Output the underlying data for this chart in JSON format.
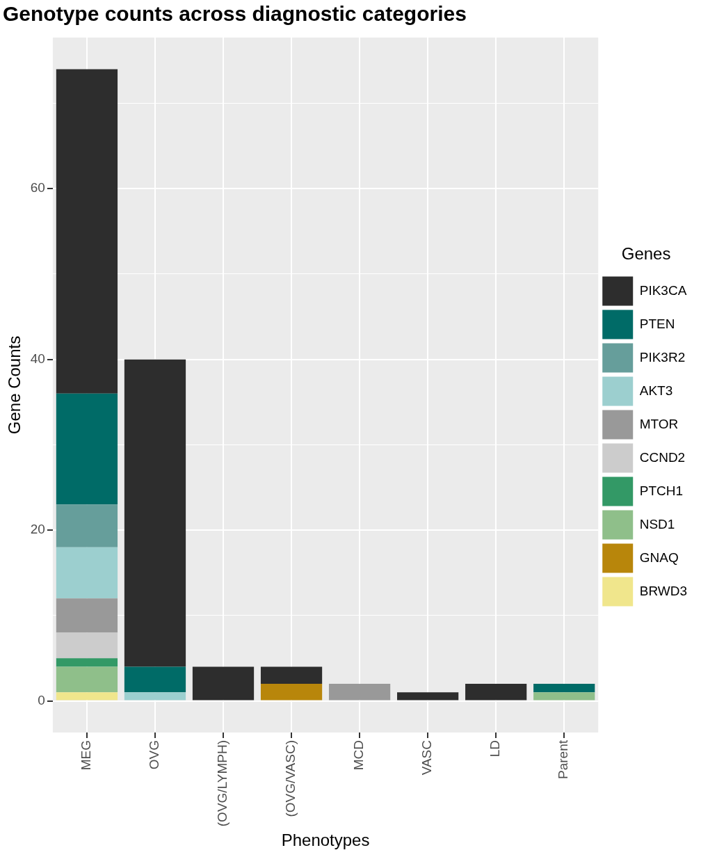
{
  "chart_data": {
    "type": "bar",
    "title": "Genotype counts across diagnostic categories",
    "xlabel": "Phenotypes",
    "ylabel": "Gene Counts",
    "legend_title": "Genes",
    "legend": "right",
    "stacked": true,
    "grid": true,
    "categories": [
      "MEG",
      "OVG",
      "(OVG/LYMPH)",
      "(OVG/VASC)",
      "MCD",
      "VASC",
      "LD",
      "Parent"
    ],
    "ylim": [
      -3.7,
      77.7
    ],
    "yticks": [
      0,
      {
        "value": 10,
        "label": null
      },
      20,
      {
        "value": 30,
        "label": null
      },
      40,
      {
        "value": 50,
        "label": null
      },
      60,
      {
        "value": 70,
        "label": null
      }
    ],
    "series": [
      {
        "name": "BRWD3",
        "color": "#f0e68c",
        "values": [
          1,
          null,
          null,
          null,
          null,
          null,
          null,
          null
        ]
      },
      {
        "name": "GNAQ",
        "color": "#b8860b",
        "values": [
          null,
          null,
          null,
          2,
          null,
          null,
          null,
          null
        ]
      },
      {
        "name": "NSD1",
        "color": "#8fbf8a",
        "values": [
          3,
          null,
          null,
          null,
          null,
          null,
          null,
          1
        ]
      },
      {
        "name": "PTCH1",
        "color": "#339966",
        "values": [
          1,
          null,
          null,
          null,
          null,
          null,
          null,
          null
        ]
      },
      {
        "name": "CCND2",
        "color": "#cccccc",
        "values": [
          3,
          null,
          null,
          null,
          null,
          null,
          null,
          null
        ]
      },
      {
        "name": "MTOR",
        "color": "#999999",
        "values": [
          4,
          null,
          null,
          null,
          2,
          null,
          null,
          null
        ]
      },
      {
        "name": "AKT3",
        "color": "#9ccfcf",
        "values": [
          6,
          1,
          null,
          null,
          null,
          null,
          null,
          null
        ]
      },
      {
        "name": "PIK3R2",
        "color": "#669e9b",
        "values": [
          5,
          null,
          null,
          null,
          null,
          null,
          null,
          null
        ]
      },
      {
        "name": "PTEN",
        "color": "#006b67",
        "values": [
          13,
          3,
          null,
          null,
          null,
          null,
          null,
          1
        ]
      },
      {
        "name": "PIK3CA",
        "color": "#2d2d2d",
        "values": [
          38,
          36,
          4,
          2,
          null,
          1,
          2,
          null
        ]
      }
    ]
  }
}
